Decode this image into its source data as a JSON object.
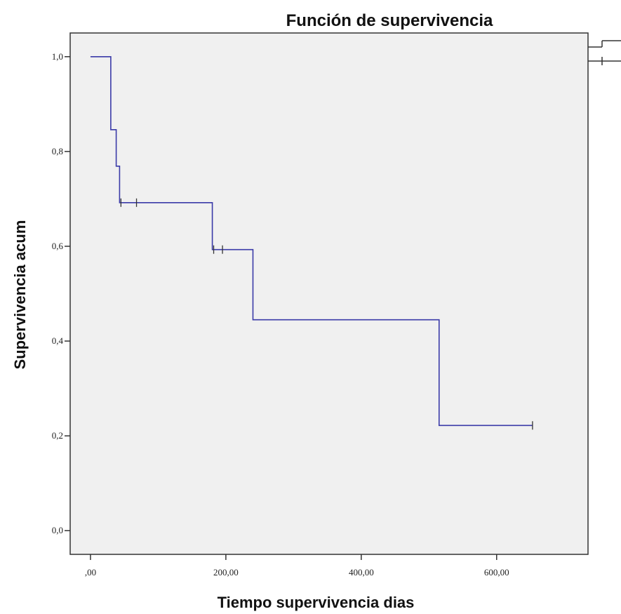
{
  "chart_data": {
    "type": "line",
    "title": "Función de supervivencia",
    "xlabel": "Tiempo supervivencia dias",
    "ylabel": "Supervivencia acum",
    "xlim": [
      -30,
      735
    ],
    "ylim": [
      -0.05,
      1.05
    ],
    "x_ticks": [
      {
        "value": 0,
        "label": ",00"
      },
      {
        "value": 200,
        "label": "200,00"
      },
      {
        "value": 400,
        "label": "400,00"
      },
      {
        "value": 600,
        "label": "600,00"
      }
    ],
    "y_ticks": [
      {
        "value": 0.0,
        "label": "0,0"
      },
      {
        "value": 0.2,
        "label": "0,2"
      },
      {
        "value": 0.4,
        "label": "0,4"
      },
      {
        "value": 0.6,
        "label": "0,6"
      },
      {
        "value": 0.8,
        "label": "0,8"
      },
      {
        "value": 1.0,
        "label": "1,0"
      }
    ],
    "grid": false,
    "background_color": "#f0f0f0",
    "series": [
      {
        "step": true,
        "color": "#3a3aa8",
        "points": [
          {
            "x": 0,
            "y": 1.0
          },
          {
            "x": 30,
            "y": 0.846
          },
          {
            "x": 38,
            "y": 0.769
          },
          {
            "x": 43,
            "y": 0.692
          },
          {
            "x": 180,
            "y": 0.593
          },
          {
            "x": 240,
            "y": 0.445
          },
          {
            "x": 515,
            "y": 0.222
          },
          {
            "x": 653,
            "y": 0.222
          }
        ],
        "censored": [
          {
            "x": 45,
            "y": 0.692
          },
          {
            "x": 68,
            "y": 0.692
          },
          {
            "x": 182,
            "y": 0.593
          },
          {
            "x": 195,
            "y": 0.593
          },
          {
            "x": 653,
            "y": 0.222
          }
        ]
      }
    ]
  }
}
